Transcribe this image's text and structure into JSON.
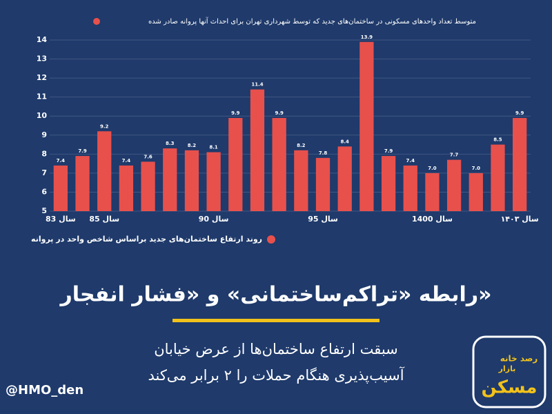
{
  "chart_data": {
    "type": "bar",
    "categories": [
      "سال 83",
      null,
      "سال 85",
      null,
      null,
      null,
      null,
      "سال 90",
      null,
      null,
      null,
      null,
      "سال 95",
      null,
      null,
      null,
      null,
      "سال 1400",
      null,
      null,
      null,
      "سال ۱۴۰۳"
    ],
    "series": [
      {
        "name": "متوسط تعداد واحدهای مسکونی در ساختمان‌های جدید که توسط شهرداری تهران برای احداث آنها پروانه صادر شده",
        "color": "#e8504c",
        "values": [
          7.4,
          7.9,
          9.2,
          7.4,
          7.6,
          8.3,
          8.2,
          8.1,
          9.9,
          11.4,
          9.9,
          8.2,
          7.8,
          8.4,
          13.9,
          7.9,
          7.4,
          7.0,
          7.7,
          7.0,
          8.5,
          9.9
        ],
        "value_labels": [
          "7.4",
          "7.9",
          "9.2",
          "7.4",
          "7.6",
          "8.3",
          "8.2",
          "8.1",
          "9.9",
          "11.4",
          "9.9",
          "8.2",
          "7.8",
          "8.4",
          "13.9",
          "7.9",
          "7.4",
          "7.0",
          "7.7",
          "7.0",
          "8.5",
          "9.9"
        ]
      }
    ],
    "ylim": [
      5,
      14
    ],
    "yticks": [
      5,
      6,
      7,
      8,
      9,
      10,
      11,
      12,
      13,
      14
    ],
    "grid": true,
    "note": "روند ارتفاع ساختمان‌های جدید براساس شاخص واحد در پروانه"
  },
  "headline": "رابطه «تراکم‌ساختمانی» و «فشار انفجار»",
  "subheadline": [
    "سبقت ارتفاع ساختمان‌ها از عرض خیابان",
    "آسیب‌پذیری هنگام حملات را ۲ برابر می‌کند"
  ],
  "handle": "@HMO_den",
  "logo": [
    "رصد خانه",
    "بازار",
    "مسکن"
  ]
}
